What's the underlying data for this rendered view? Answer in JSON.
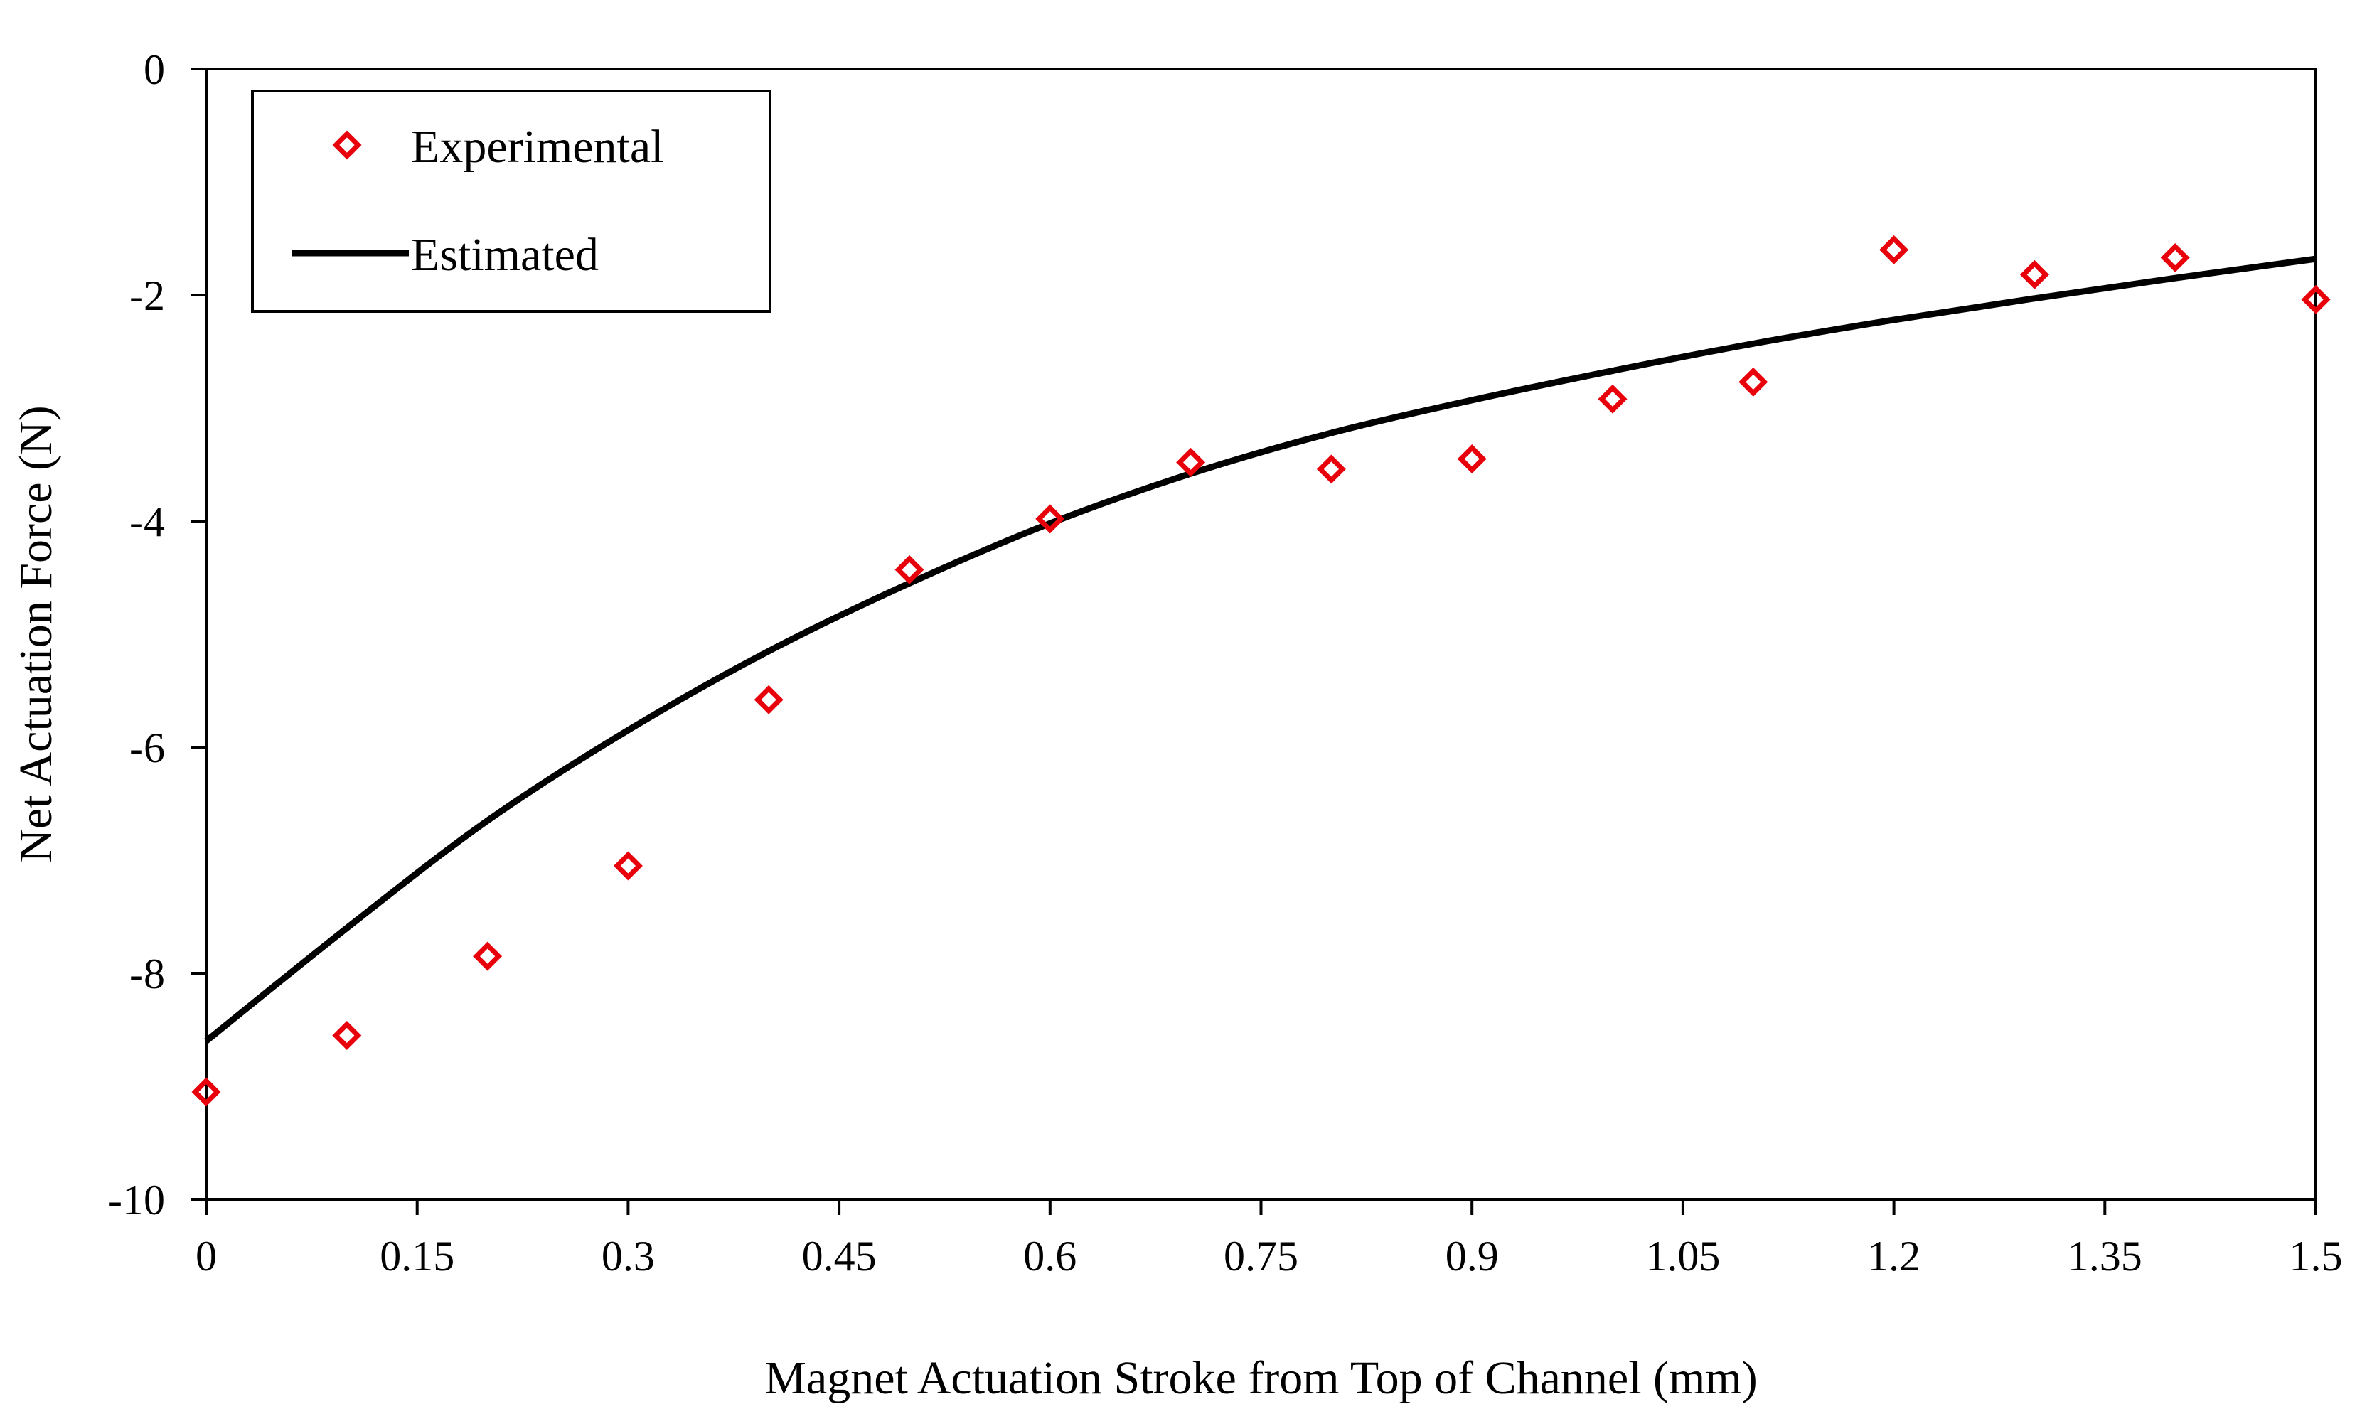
{
  "chart_data": {
    "type": "scatter",
    "xlabel": "Magnet Actuation Stroke from Top of Channel (mm)",
    "ylabel": "Net Actuation Force (N)",
    "xlim": [
      0,
      1.5
    ],
    "ylim": [
      -10,
      0
    ],
    "x_ticks": [
      "0",
      "0.15",
      "0.3",
      "0.45",
      "0.6",
      "0.75",
      "0.9",
      "1.05",
      "1.2",
      "1.35",
      "1.5"
    ],
    "y_ticks": [
      "0",
      "-2",
      "-4",
      "-6",
      "-8",
      "-10"
    ],
    "grid": false,
    "legend_position": "top-left",
    "series": [
      {
        "name": "Experimental",
        "kind": "markers",
        "marker": "diamond",
        "color": "#e8000b",
        "points": [
          {
            "x": 0.0,
            "y": -9.05
          },
          {
            "x": 0.1,
            "y": -8.55
          },
          {
            "x": 0.2,
            "y": -7.85
          },
          {
            "x": 0.3,
            "y": -7.05
          },
          {
            "x": 0.4,
            "y": -5.58
          },
          {
            "x": 0.5,
            "y": -4.43
          },
          {
            "x": 0.6,
            "y": -3.98
          },
          {
            "x": 0.7,
            "y": -3.48
          },
          {
            "x": 0.8,
            "y": -3.54
          },
          {
            "x": 0.9,
            "y": -3.45
          },
          {
            "x": 1.0,
            "y": -2.92
          },
          {
            "x": 1.1,
            "y": -2.77
          },
          {
            "x": 1.2,
            "y": -1.6
          },
          {
            "x": 1.3,
            "y": -1.82
          },
          {
            "x": 1.4,
            "y": -1.67
          },
          {
            "x": 1.5,
            "y": -2.04
          }
        ]
      },
      {
        "name": "Estimated",
        "kind": "line",
        "color": "#000000",
        "points": [
          {
            "x": 0.0,
            "y": -8.6
          },
          {
            "x": 0.1,
            "y": -7.6
          },
          {
            "x": 0.2,
            "y": -6.65
          },
          {
            "x": 0.3,
            "y": -5.85
          },
          {
            "x": 0.4,
            "y": -5.15
          },
          {
            "x": 0.5,
            "y": -4.55
          },
          {
            "x": 0.6,
            "y": -4.02
          },
          {
            "x": 0.7,
            "y": -3.58
          },
          {
            "x": 0.8,
            "y": -3.22
          },
          {
            "x": 0.9,
            "y": -2.93
          },
          {
            "x": 1.0,
            "y": -2.67
          },
          {
            "x": 1.1,
            "y": -2.43
          },
          {
            "x": 1.2,
            "y": -2.22
          },
          {
            "x": 1.3,
            "y": -2.03
          },
          {
            "x": 1.4,
            "y": -1.85
          },
          {
            "x": 1.5,
            "y": -1.68
          }
        ]
      }
    ]
  }
}
